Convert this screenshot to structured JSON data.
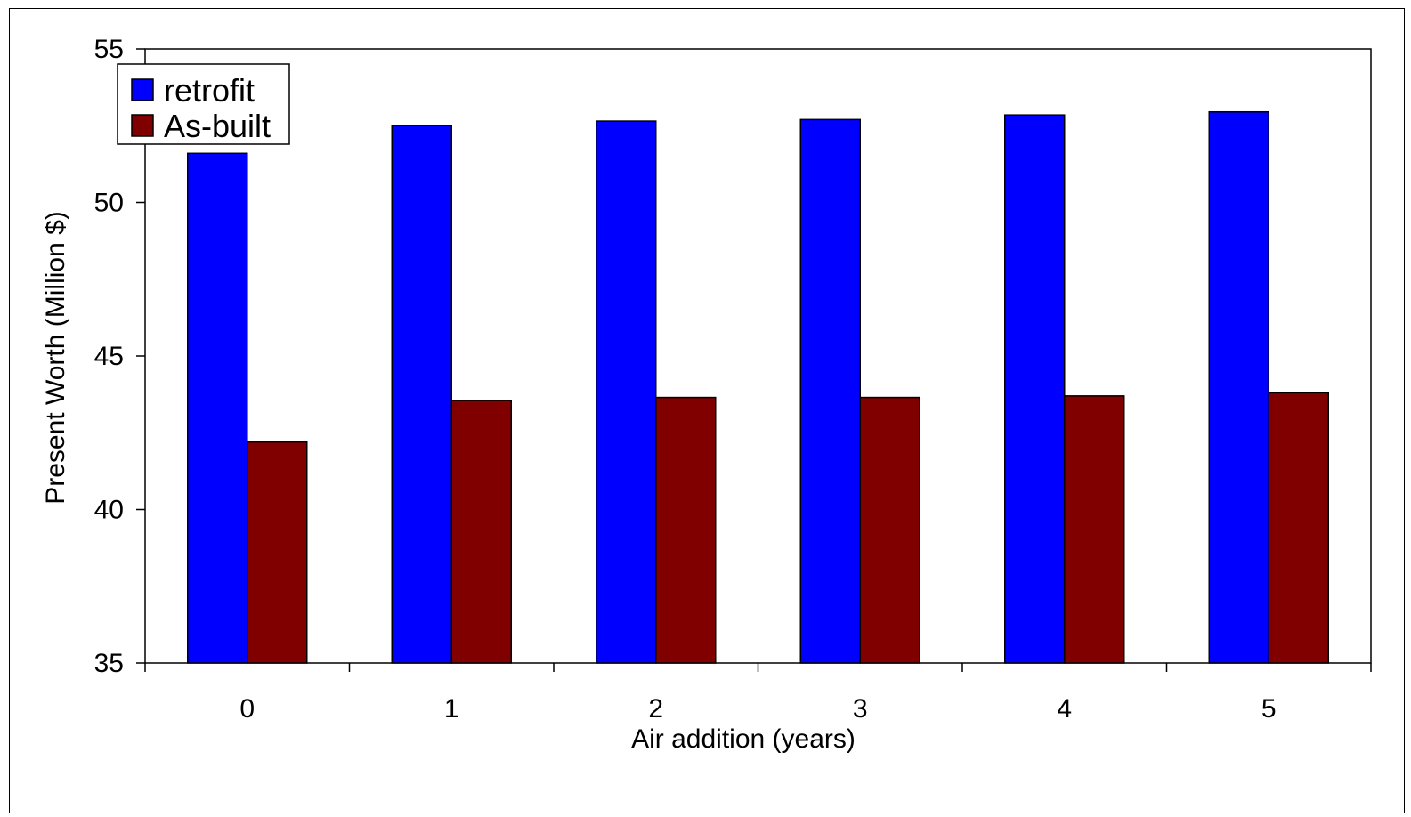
{
  "chart_data": {
    "type": "bar",
    "title": "",
    "xlabel": "Air addition (years)",
    "ylabel": "Present Worth (Million $)",
    "categories": [
      "0",
      "1",
      "2",
      "3",
      "4",
      "5"
    ],
    "ylim": [
      35,
      55
    ],
    "yticks": [
      35,
      40,
      45,
      50,
      55
    ],
    "grid": false,
    "legend_position": "top-left",
    "series": [
      {
        "name": "retrofit",
        "color": "#0000FF",
        "values": [
          51.6,
          52.5,
          52.65,
          52.7,
          52.85,
          52.95
        ]
      },
      {
        "name": "As-built",
        "color": "#800000",
        "values": [
          42.2,
          43.55,
          43.65,
          43.65,
          43.7,
          43.8
        ]
      }
    ]
  }
}
